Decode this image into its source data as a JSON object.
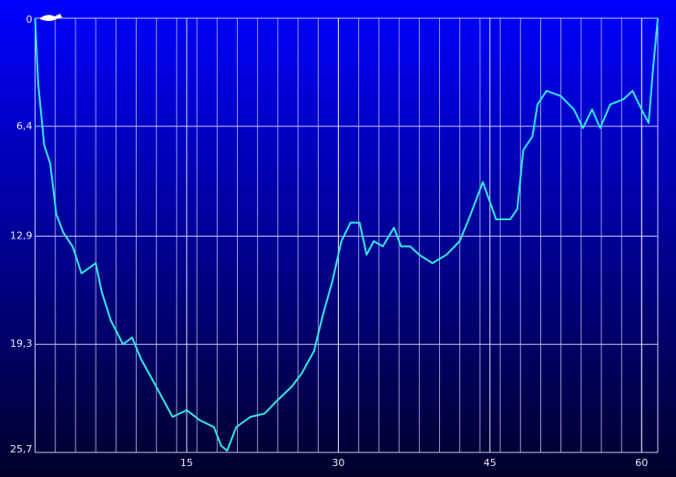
{
  "chart_data": {
    "type": "line",
    "color": "#33e6e6",
    "y_inverted": true,
    "grid": true,
    "x": [
      0,
      0.3,
      0.9,
      1.5,
      2.1,
      2.8,
      3.7,
      4.6,
      6.0,
      6.6,
      7.5,
      8.7,
      9.6,
      10.5,
      11.8,
      12.7,
      13.6,
      15.0,
      16.3,
      17.7,
      18.4,
      19.0,
      19.9,
      21.3,
      22.7,
      24.0,
      25.4,
      26.4,
      27.6,
      28.5,
      29.4,
      30.3,
      31.2,
      32.1,
      32.8,
      33.5,
      34.4,
      35.5,
      36.2,
      37.1,
      38.0,
      39.3,
      40.7,
      42.0,
      42.9,
      44.3,
      45.6,
      47.0,
      47.7,
      48.3,
      49.2,
      49.7,
      50.6,
      52.0,
      53.3,
      54.2,
      55.1,
      55.9,
      56.9,
      58.2,
      59.1,
      60.0,
      60.7,
      61.1,
      61.6
    ],
    "values": [
      0,
      3.8,
      7.5,
      8.6,
      11.6,
      12.7,
      13.5,
      15.1,
      14.5,
      16.2,
      17.9,
      19.3,
      18.9,
      20.2,
      21.6,
      22.6,
      23.6,
      23.2,
      23.8,
      24.2,
      25.3,
      25.6,
      24.2,
      23.6,
      23.4,
      22.6,
      21.8,
      21.0,
      19.7,
      17.5,
      15.6,
      13.2,
      12.1,
      12.1,
      14.0,
      13.2,
      13.5,
      12.4,
      13.5,
      13.5,
      14.0,
      14.5,
      14.0,
      13.2,
      11.9,
      9.7,
      11.9,
      11.9,
      11.3,
      7.8,
      7.0,
      5.1,
      4.3,
      4.6,
      5.4,
      6.5,
      5.4,
      6.5,
      5.1,
      4.8,
      4.3,
      5.4,
      6.2,
      3.2,
      0
    ],
    "xlim": [
      0,
      61.6
    ],
    "xticks": [
      15,
      30,
      45,
      60
    ],
    "ylim": [
      0,
      25.7
    ],
    "yticks": [
      0,
      {
        "value": 6.4,
        "label": "6,4"
      },
      {
        "value": 12.9,
        "label": "12,9"
      },
      {
        "value": 19.3,
        "label": "19,3"
      },
      {
        "value": 25.7,
        "label": "25,7"
      }
    ]
  }
}
